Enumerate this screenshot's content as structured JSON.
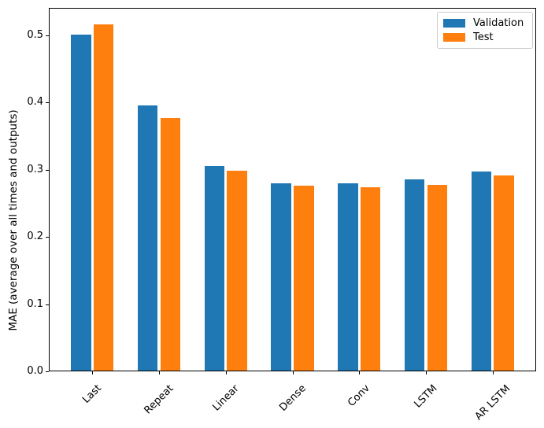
{
  "chart_data": {
    "type": "bar",
    "title": "",
    "xlabel": "",
    "ylabel": "MAE (average over all times and outputs)",
    "categories": [
      "Last",
      "Repeat",
      "Linear",
      "Dense",
      "Conv",
      "LSTM",
      "AR LSTM"
    ],
    "series": [
      {
        "name": "Validation",
        "color": "#1f77b4",
        "values": [
          0.501,
          0.396,
          0.306,
          0.28,
          0.28,
          0.286,
          0.298
        ]
      },
      {
        "name": "Test",
        "color": "#ff7f0e",
        "values": [
          0.516,
          0.377,
          0.299,
          0.276,
          0.274,
          0.277,
          0.292
        ]
      }
    ],
    "ylim": [
      0,
      0.541
    ],
    "yticks": {
      "values": [
        0.0,
        0.1,
        0.2,
        0.3,
        0.4,
        0.5
      ],
      "labels": [
        "0.0",
        "0.1",
        "0.2",
        "0.3",
        "0.4",
        "0.5"
      ]
    },
    "x_tick_rotation": 45,
    "grid": false,
    "legend": {
      "position": "upper right"
    },
    "bar_group": {
      "bar_width_units": 0.3,
      "bar_offset_units": 0.17
    },
    "background": "#ffffff",
    "spine_color": "#000000"
  }
}
